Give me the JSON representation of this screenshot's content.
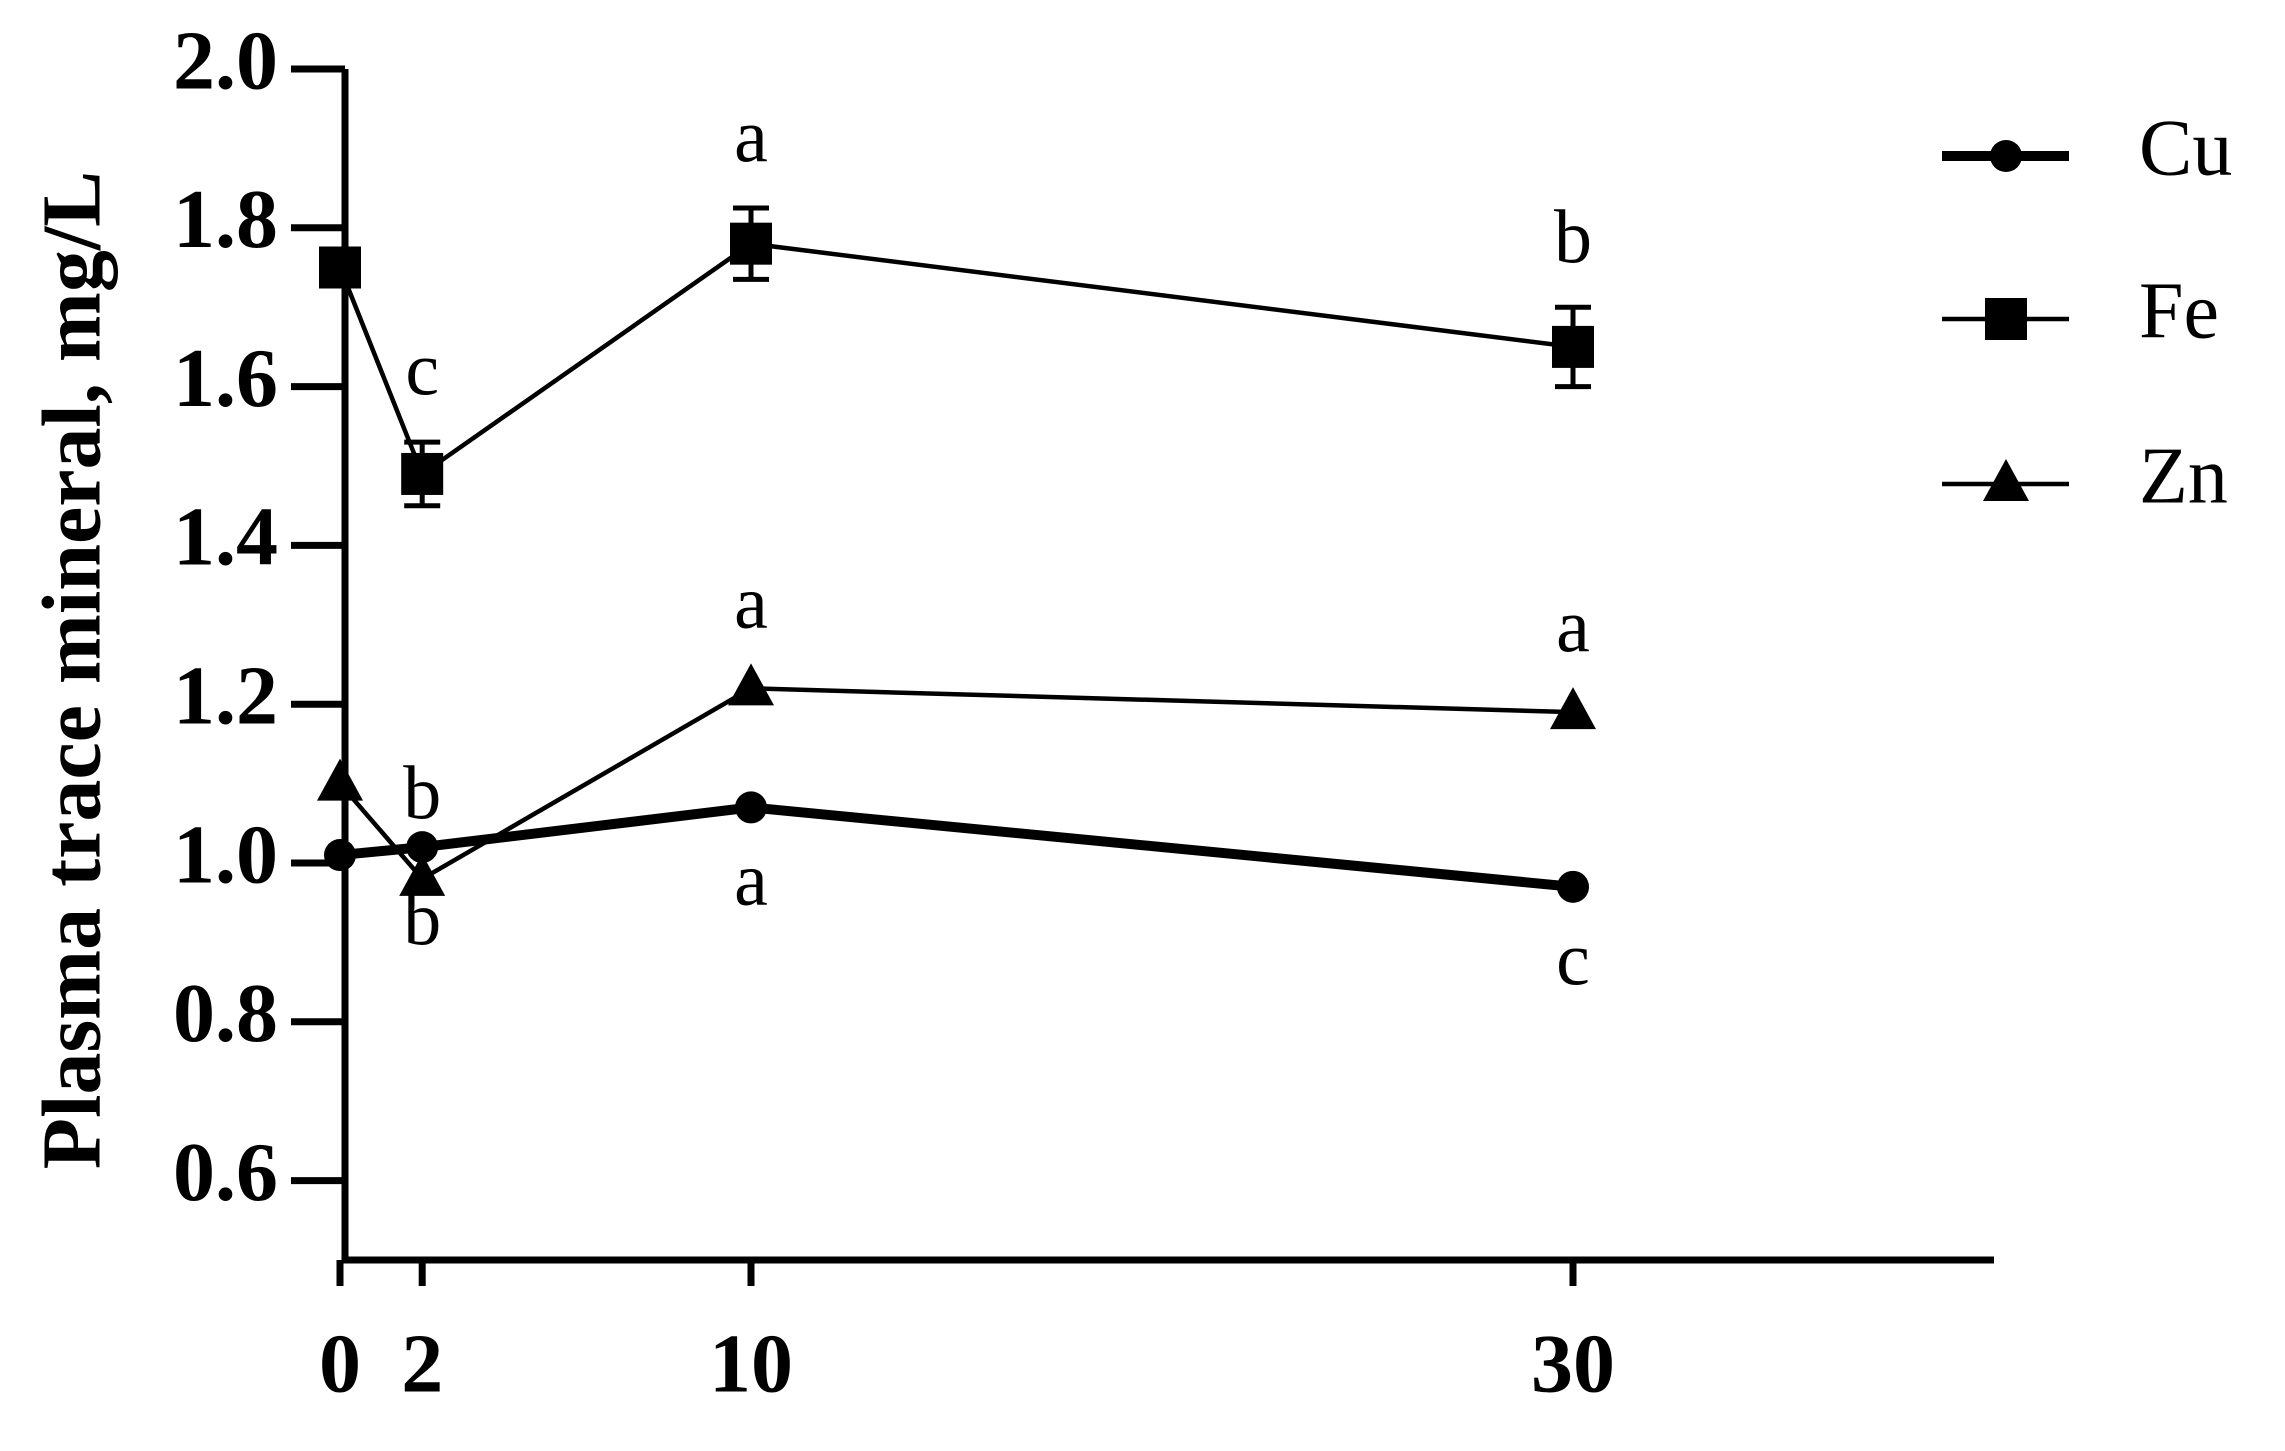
{
  "chart_data": {
    "type": "line",
    "y_label": "Plasma trace mineral, mg/L",
    "x": [
      0,
      2,
      10,
      30
    ],
    "xlim": [
      0,
      40
    ],
    "xticks": [
      0,
      2,
      10,
      30
    ],
    "ylim": [
      0.5,
      2.0
    ],
    "yticks": [
      {
        "value": 0.6,
        "label": "0.6"
      },
      {
        "value": 0.8,
        "label": "0.8"
      },
      {
        "value": 1.0,
        "label": "1.0"
      },
      {
        "value": 1.2,
        "label": "1.2"
      },
      {
        "value": 1.4,
        "label": "1.4"
      },
      {
        "value": 1.6,
        "label": "1.6"
      },
      {
        "value": 1.8,
        "label": "1.8"
      },
      {
        "value": 2.0,
        "label": "2.0"
      }
    ],
    "legend": "right",
    "series": [
      {
        "name": "Cu",
        "color": "#000000",
        "marker": "circle",
        "values": [
          1.01,
          1.02,
          1.07,
          0.97
        ],
        "labels": [
          null,
          "b",
          "a",
          "c"
        ]
      },
      {
        "name": "Fe",
        "color": "#000000",
        "marker": "square",
        "values": [
          1.75,
          1.49,
          1.78,
          1.65
        ],
        "errors": [
          null,
          0.04,
          0.045,
          0.05
        ],
        "labels": [
          null,
          "c",
          "a",
          "b"
        ]
      },
      {
        "name": "Zn",
        "color": "#000000",
        "marker": "triangle",
        "values": [
          1.1,
          0.98,
          1.22,
          1.19
        ],
        "labels": [
          null,
          "b",
          "a",
          "a"
        ]
      }
    ]
  }
}
